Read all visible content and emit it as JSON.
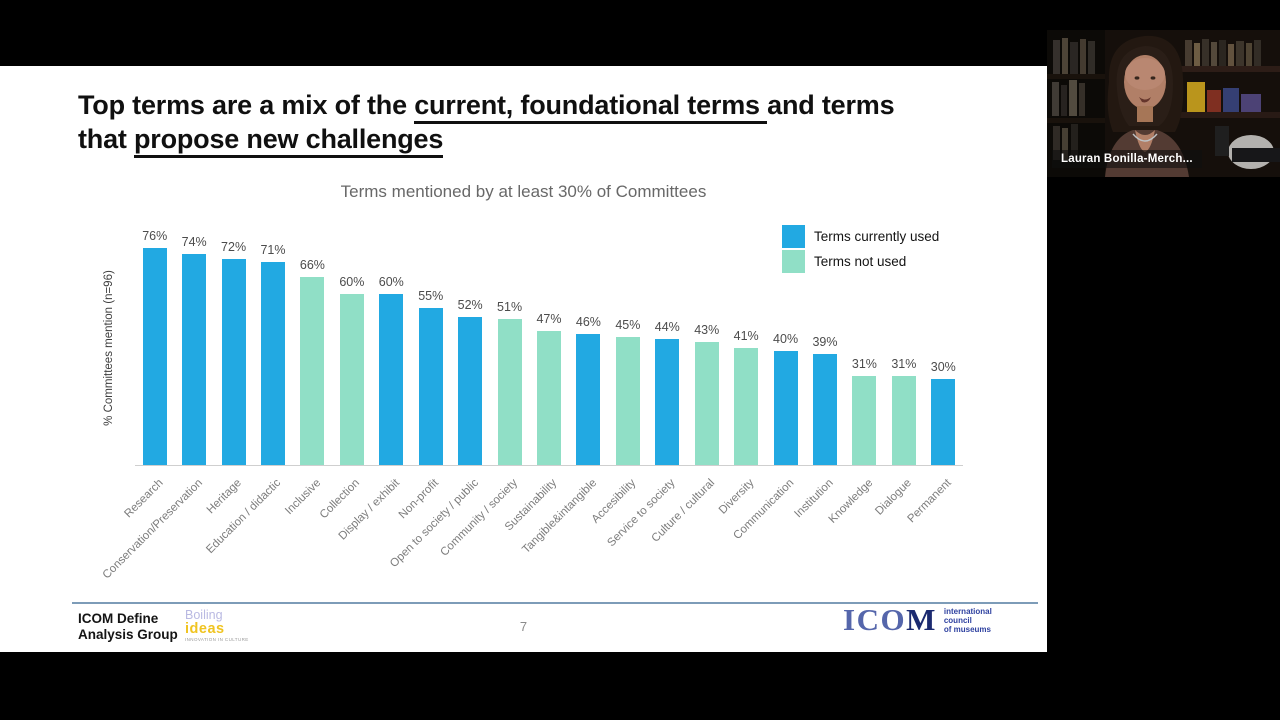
{
  "webcam": {
    "name_label": "Lauran Bonilla-Merch..."
  },
  "slide": {
    "title": {
      "line1_pre": "Top terms are a mix of the ",
      "line1_underlined": "current, foundational terms ",
      "line1_post": "and terms",
      "line2_pre": "that ",
      "line2_underlined": "propose new challenges"
    },
    "footer": {
      "group_line1": "ICOM Define",
      "group_line2": "Analysis Group",
      "boiling_line1": "Boiling",
      "boiling_line2": "ideas",
      "boiling_line3": "INNOVATION IN CULTURE",
      "page_number": "7",
      "icom_word_ico": "ICO",
      "icom_word_m": "M",
      "icom_sub_line1": "international",
      "icom_sub_line2": "council",
      "icom_sub_line3": "of museums"
    }
  },
  "chart_data": {
    "type": "bar",
    "title": "Terms mentioned by at least 30% of Committees",
    "xlabel": "",
    "ylabel": "% Committees mention (n=96)",
    "ylim": [
      0,
      80
    ],
    "unit": "%",
    "grid": false,
    "legend_position": "top-right",
    "legend": [
      {
        "key": "currently_used",
        "label": "Terms currently used",
        "color": "#22A9E2"
      },
      {
        "key": "not_used",
        "label": "Terms not used",
        "color": "#90DFC6"
      }
    ],
    "bars": [
      {
        "category": "Research",
        "value": 76,
        "label": "76%",
        "group": "currently_used"
      },
      {
        "category": "Conservation/Preservation",
        "value": 74,
        "label": "74%",
        "group": "currently_used"
      },
      {
        "category": "Heritage",
        "value": 72,
        "label": "72%",
        "group": "currently_used"
      },
      {
        "category": "Education / didactic",
        "value": 71,
        "label": "71%",
        "group": "currently_used"
      },
      {
        "category": "Inclusive",
        "value": 66,
        "label": "66%",
        "group": "not_used"
      },
      {
        "category": "Collection",
        "value": 60,
        "label": "60%",
        "group": "not_used"
      },
      {
        "category": "Display / exhibit",
        "value": 60,
        "label": "60%",
        "group": "currently_used"
      },
      {
        "category": "Non-profit",
        "value": 55,
        "label": "55%",
        "group": "currently_used"
      },
      {
        "category": "Open to society / public",
        "value": 52,
        "label": "52%",
        "group": "currently_used"
      },
      {
        "category": "Community / society",
        "value": 51,
        "label": "51%",
        "group": "not_used"
      },
      {
        "category": "Sustainability",
        "value": 47,
        "label": "47%",
        "group": "not_used"
      },
      {
        "category": "Tangible&intangible",
        "value": 46,
        "label": "46%",
        "group": "currently_used"
      },
      {
        "category": "Accesibility",
        "value": 45,
        "label": "45%",
        "group": "not_used"
      },
      {
        "category": "Service to society",
        "value": 44,
        "label": "44%",
        "group": "currently_used"
      },
      {
        "category": "Culture / cultural",
        "value": 43,
        "label": "43%",
        "group": "not_used"
      },
      {
        "category": "Diversity",
        "value": 41,
        "label": "41%",
        "group": "not_used"
      },
      {
        "category": "Communication",
        "value": 40,
        "label": "40%",
        "group": "currently_used"
      },
      {
        "category": "Institution",
        "value": 39,
        "label": "39%",
        "group": "currently_used"
      },
      {
        "category": "Knowledge",
        "value": 31,
        "label": "31%",
        "group": "not_used"
      },
      {
        "category": "Dialogue",
        "value": 31,
        "label": "31%",
        "group": "not_used"
      },
      {
        "category": "Permanent",
        "value": 30,
        "label": "30%",
        "group": "currently_used"
      }
    ]
  }
}
